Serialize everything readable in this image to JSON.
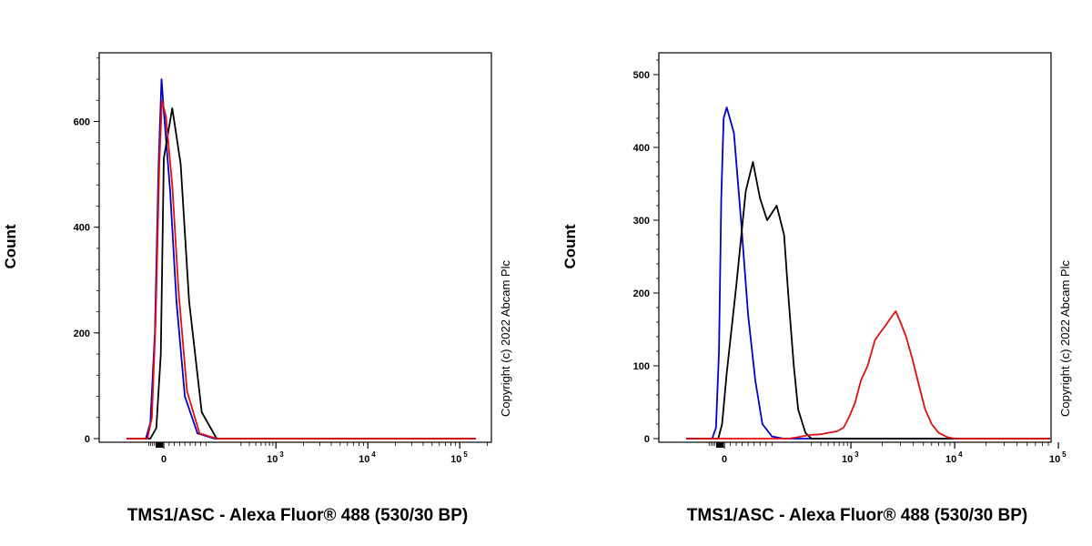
{
  "copyright": "Copyright (c) 2022 Abcam Plc",
  "chart_data": [
    {
      "type": "line",
      "title": "",
      "xlabel": "TMS1/ASC - Alexa Fluor® 488 (530/30 BP)",
      "ylabel": "Count",
      "xscale": "biexponential",
      "xlim": [
        -300,
        200000
      ],
      "ylim": [
        0,
        730
      ],
      "yticks": [
        0,
        200,
        400,
        600
      ],
      "xticks": [
        {
          "value": 0,
          "base": "0",
          "exp": ""
        },
        {
          "value": 1000,
          "base": "10",
          "exp": "3"
        },
        {
          "value": 10000,
          "base": "10",
          "exp": "4"
        },
        {
          "value": 100000,
          "base": "10",
          "exp": "5"
        }
      ],
      "grid": false,
      "series": [
        {
          "color": "#0000cc",
          "x": [
            -250,
            -120,
            -90,
            -60,
            -35,
            -15,
            0,
            15,
            30,
            50,
            80,
            120,
            300,
            1000,
            10000,
            150000
          ],
          "y": [
            0,
            0,
            30,
            200,
            520,
            680,
            620,
            470,
            260,
            80,
            10,
            0,
            0,
            0,
            0,
            0
          ]
        },
        {
          "color": "#000000",
          "x": [
            -250,
            -90,
            -50,
            -20,
            0,
            20,
            40,
            60,
            90,
            130,
            300,
            1000,
            10000,
            150000
          ],
          "y": [
            0,
            0,
            20,
            160,
            530,
            625,
            520,
            260,
            50,
            0,
            0,
            0,
            0,
            0
          ]
        },
        {
          "color": "#e01010",
          "x": [
            -250,
            -110,
            -80,
            -55,
            -30,
            -12,
            5,
            20,
            35,
            55,
            85,
            130,
            300,
            1000,
            10000,
            150000
          ],
          "y": [
            0,
            0,
            40,
            220,
            520,
            640,
            610,
            480,
            280,
            90,
            10,
            0,
            0,
            0,
            0,
            0
          ]
        }
      ]
    },
    {
      "type": "line",
      "title": "",
      "xlabel": "TMS1/ASC - Alexa Fluor® 488 (530/30 BP)",
      "ylabel": "Count",
      "xscale": "biexponential",
      "xlim": [
        -300,
        200000
      ],
      "ylim": [
        0,
        530
      ],
      "yticks": [
        0,
        100,
        200,
        300,
        400,
        500
      ],
      "xticks": [
        {
          "value": 0,
          "base": "0",
          "exp": ""
        },
        {
          "value": 1000,
          "base": "10",
          "exp": "3"
        },
        {
          "value": 10000,
          "base": "10",
          "exp": "4"
        },
        {
          "value": 100000,
          "base": "10",
          "exp": "5"
        }
      ],
      "grid": false,
      "series": [
        {
          "color": "#0000cc",
          "x": [
            -250,
            -80,
            -55,
            -35,
            -20,
            -5,
            5,
            20,
            35,
            50,
            65,
            80,
            100,
            130,
            300,
            1000,
            10000,
            150000
          ],
          "y": [
            0,
            0,
            15,
            120,
            330,
            440,
            455,
            420,
            300,
            170,
            80,
            20,
            3,
            0,
            0,
            0,
            0,
            0
          ]
        },
        {
          "color": "#000000",
          "x": [
            -250,
            -40,
            -15,
            5,
            25,
            45,
            60,
            75,
            90,
            110,
            130,
            150,
            175,
            200,
            250,
            300,
            1000,
            10000,
            150000
          ],
          "y": [
            0,
            0,
            20,
            90,
            210,
            340,
            380,
            330,
            300,
            320,
            280,
            190,
            100,
            40,
            8,
            0,
            0,
            0,
            0
          ]
        },
        {
          "color": "#e01010",
          "x": [
            -250,
            150,
            200,
            280,
            400,
            500,
            650,
            800,
            950,
            1100,
            1250,
            1450,
            1700,
            1900,
            2150,
            2400,
            2700,
            3000,
            3400,
            3900,
            4500,
            5200,
            6000,
            7000,
            8500,
            10000,
            150000
          ],
          "y": [
            0,
            0,
            2,
            5,
            6,
            8,
            10,
            15,
            30,
            50,
            80,
            100,
            135,
            145,
            155,
            165,
            175,
            160,
            140,
            110,
            75,
            40,
            20,
            8,
            2,
            0,
            0
          ]
        }
      ]
    }
  ]
}
